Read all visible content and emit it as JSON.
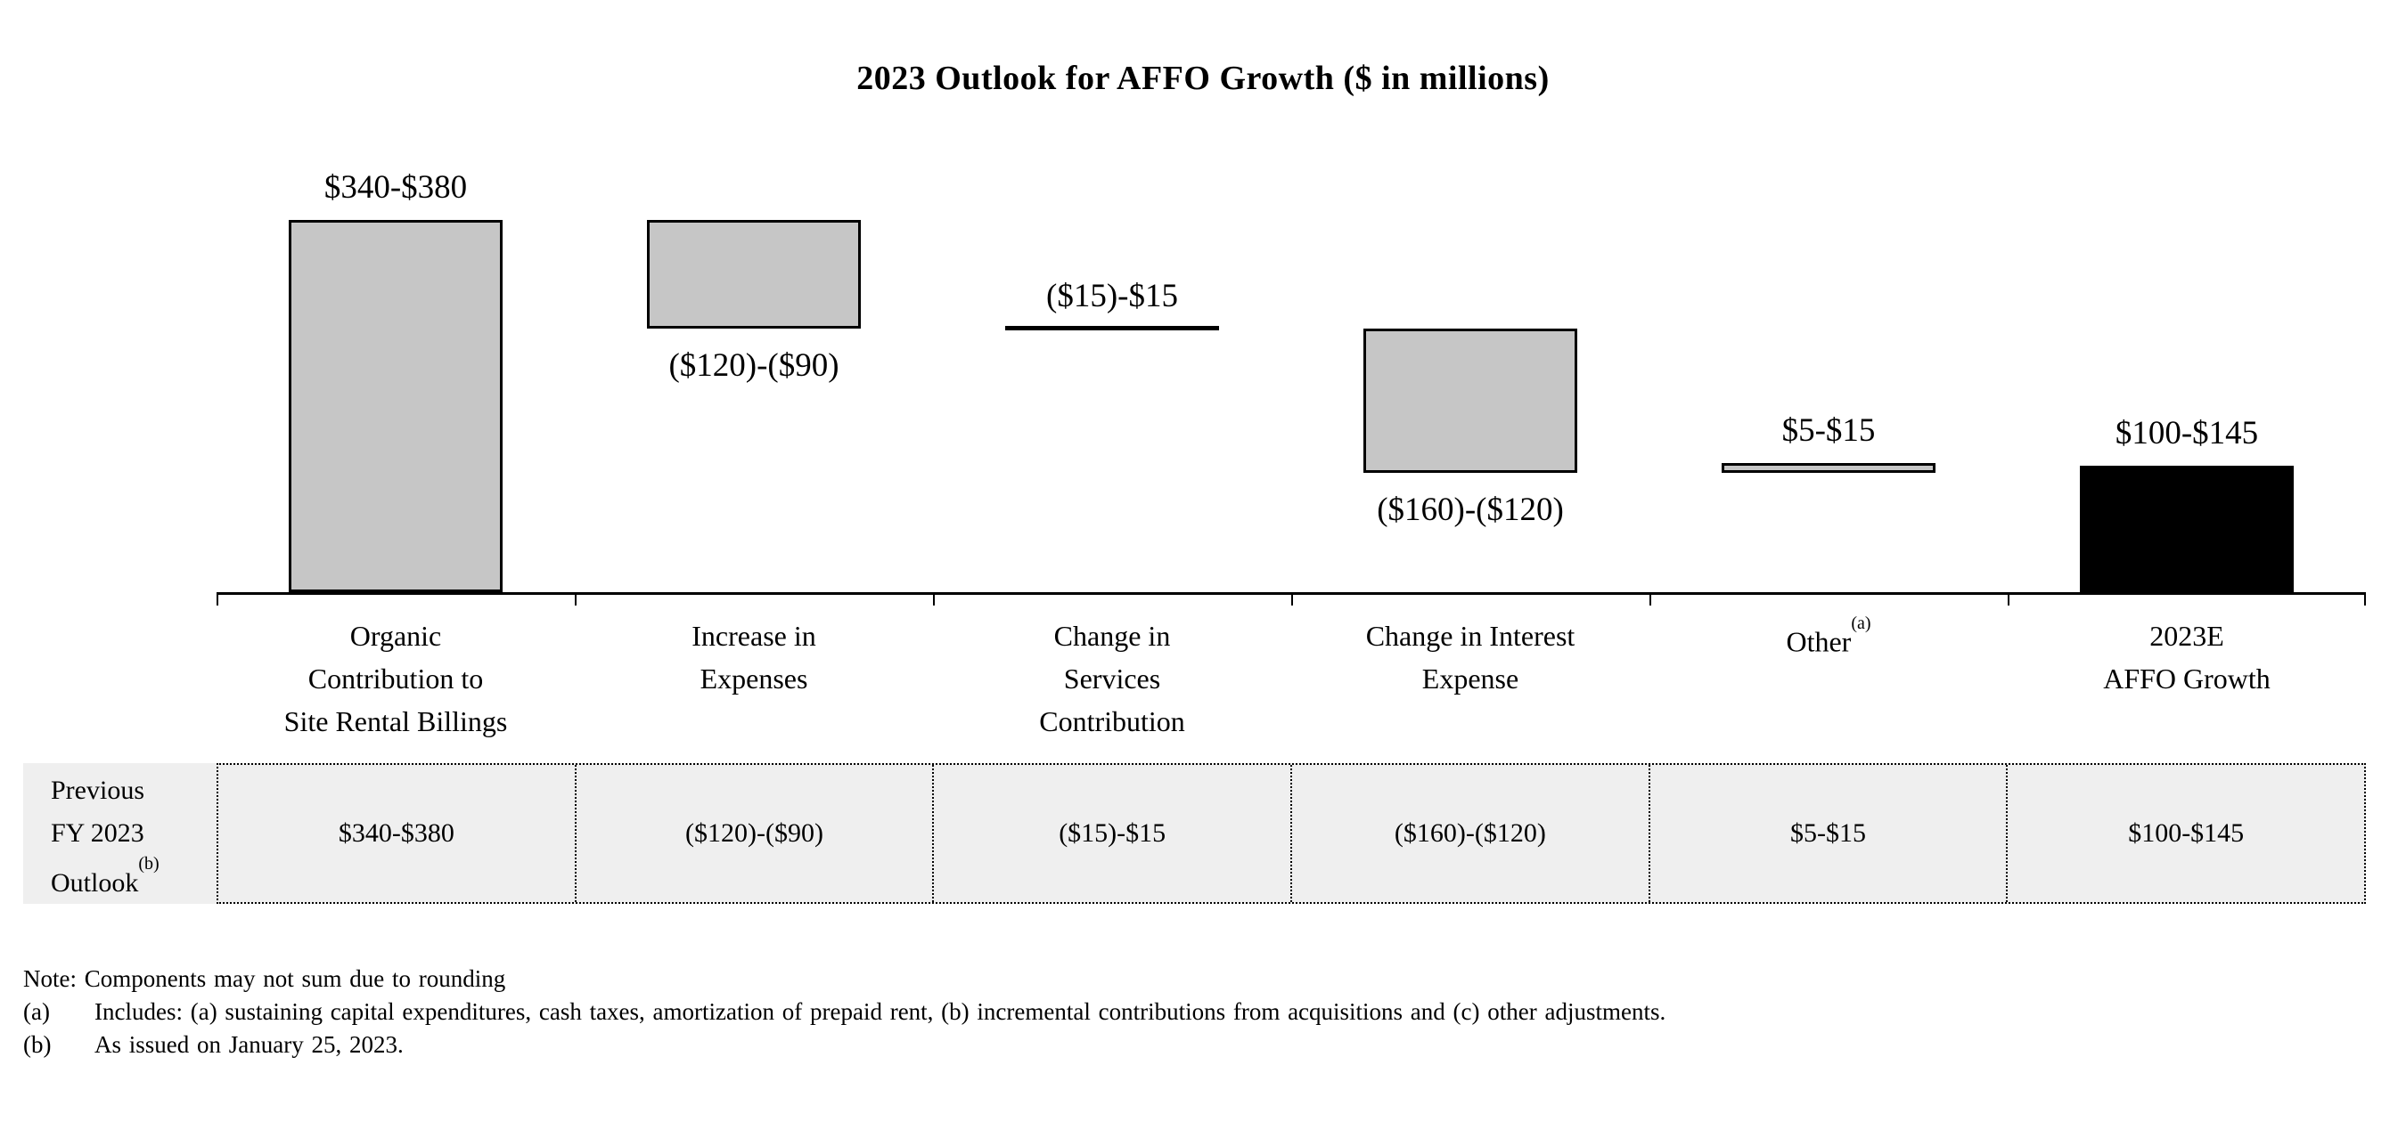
{
  "title": "2023 Outlook for AFFO Growth ($ in millions)",
  "chart_data": {
    "type": "bar",
    "subtype": "waterfall",
    "title": "2023 Outlook for AFFO Growth ($ in millions)",
    "y_axis_shown": false,
    "value_labels_shown": true,
    "unit": "$ in millions",
    "categories": [
      "Organic Contribution to Site Rental Billings",
      "Increase in Expenses",
      "Change in Services Contribution",
      "Change in Interest Expense",
      "Other",
      "2023E AFFO Growth"
    ],
    "bars": [
      {
        "category_lines": [
          "Organic",
          "Contribution to",
          "Site Rental Billings"
        ],
        "value_label": "$340-$380",
        "low": 340,
        "high": 380,
        "kind": "delta",
        "label_side": "above",
        "fill": "#c6c6c6"
      },
      {
        "category_lines": [
          "Increase in",
          "Expenses"
        ],
        "value_label": "($120)-($90)",
        "low": -120,
        "high": -90,
        "kind": "delta",
        "label_side": "below",
        "fill": "#c6c6c6"
      },
      {
        "category_lines": [
          "Change in",
          "Services",
          "Contribution"
        ],
        "value_label": "($15)-$15",
        "low": -15,
        "high": 15,
        "kind": "delta",
        "label_side": "above",
        "fill": "#000000"
      },
      {
        "category_lines": [
          "Change in Interest",
          "Expense"
        ],
        "value_label": "($160)-($120)",
        "low": -160,
        "high": -120,
        "kind": "delta",
        "label_side": "below",
        "fill": "#c6c6c6"
      },
      {
        "category_lines": [
          "Other"
        ],
        "superscript": "(a)",
        "value_label": "$5-$15",
        "low": 5,
        "high": 15,
        "kind": "delta",
        "label_side": "above",
        "fill": "#c6c6c6"
      },
      {
        "category_lines": [
          "2023E",
          "AFFO Growth"
        ],
        "value_label": "$100-$145",
        "low": 100,
        "high": 145,
        "kind": "total",
        "label_side": "above",
        "fill": "#000000"
      }
    ]
  },
  "table": {
    "row_label_lines": [
      "Previous",
      "FY 2023",
      "Outlook"
    ],
    "row_label_superscript": "(b)",
    "values": [
      "$340-$380",
      "($120)-($90)",
      "($15)-$15",
      "($160)-($120)",
      "$5-$15",
      "$100-$145"
    ]
  },
  "footnotes": {
    "note": "Note: Components may not sum due to rounding",
    "items": [
      {
        "marker": "(a)",
        "text": "Includes: (a) sustaining capital expenditures, cash taxes, amortization of prepaid rent, (b) incremental contributions from acquisitions and (c) other adjustments."
      },
      {
        "marker": "(b)",
        "text": "As issued on January 25, 2023."
      }
    ]
  }
}
